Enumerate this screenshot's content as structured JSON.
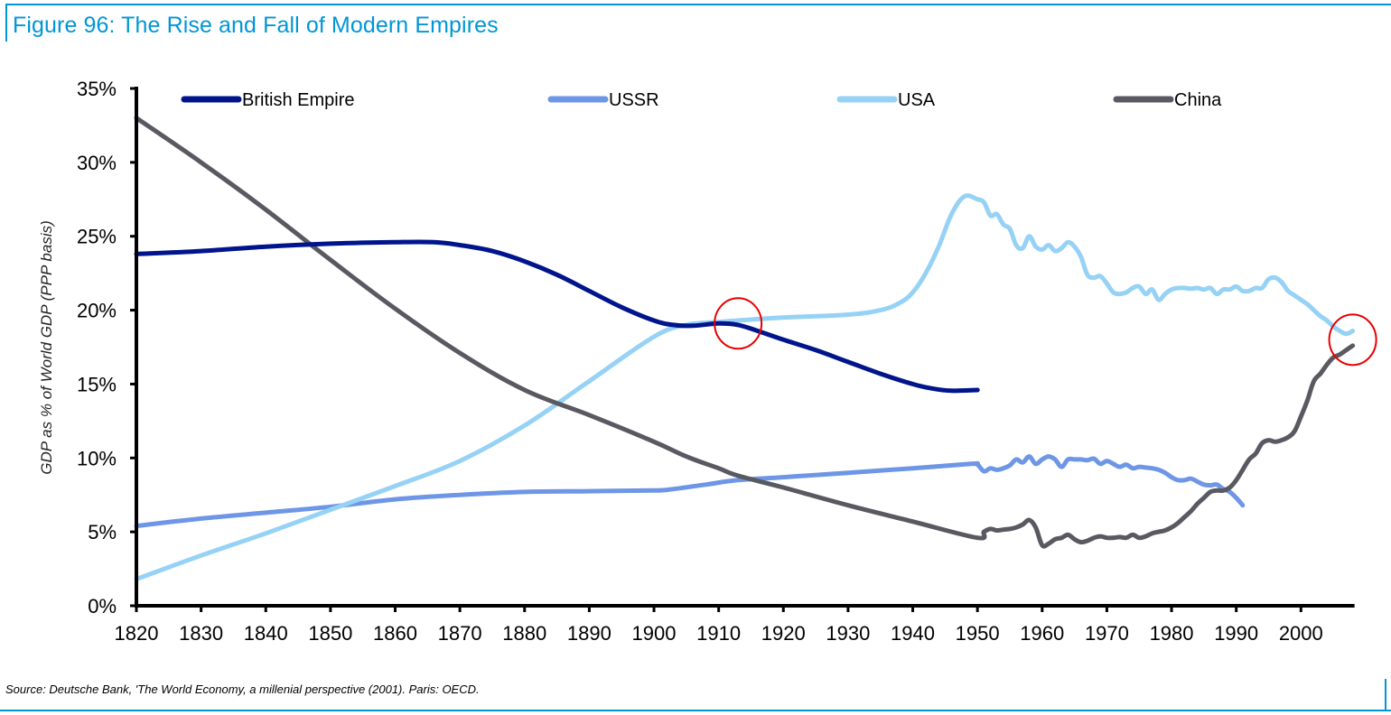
{
  "figure": {
    "title": "Figure 96: The Rise and Fall of Modern Empires",
    "source": "Source: Deutsche Bank, 'The World Economy, a millenial perspective (2001). Paris: OECD.",
    "accent_color": "#0096d6"
  },
  "chart_data": {
    "type": "line",
    "title": "Figure 96: The Rise and Fall of Modern Empires",
    "xlabel": "",
    "ylabel": "GDP as % of World GDP (PPP basis)",
    "xlim": [
      1820,
      2008
    ],
    "ylim": [
      0,
      35
    ],
    "x_ticks": [
      1820,
      1830,
      1840,
      1850,
      1860,
      1870,
      1880,
      1890,
      1900,
      1910,
      1920,
      1930,
      1940,
      1950,
      1960,
      1970,
      1980,
      1990,
      2000
    ],
    "x_tick_labels": [
      "1820",
      "1830",
      "1840",
      "1850",
      "1860",
      "1870",
      "1880",
      "1890",
      "1900",
      "1910",
      "1920",
      "1930",
      "1940",
      "1950",
      "1960",
      "1970",
      "1980",
      "1990",
      "2000"
    ],
    "y_ticks": [
      0,
      5,
      10,
      15,
      20,
      25,
      30,
      35
    ],
    "y_tick_labels": [
      "0%",
      "5%",
      "10%",
      "15%",
      "20%",
      "25%",
      "30%",
      "35%"
    ],
    "grid": false,
    "legend_position": "top",
    "series": [
      {
        "name": "British Empire",
        "color": "#00148c",
        "x": [
          1820,
          1830,
          1840,
          1850,
          1860,
          1866,
          1870,
          1875,
          1880,
          1885,
          1890,
          1895,
          1900,
          1903,
          1906,
          1910,
          1913,
          1916,
          1920,
          1925,
          1930,
          1935,
          1940,
          1943,
          1946,
          1950
        ],
        "values": [
          23.8,
          24.0,
          24.3,
          24.5,
          24.6,
          24.6,
          24.4,
          24.0,
          23.3,
          22.4,
          21.3,
          20.2,
          19.3,
          19.0,
          18.95,
          19.1,
          19.0,
          18.6,
          18.0,
          17.3,
          16.5,
          15.7,
          15.0,
          14.7,
          14.55,
          14.6
        ]
      },
      {
        "name": "USSR",
        "color": "#6e96e6",
        "x": [
          1820,
          1830,
          1840,
          1850,
          1860,
          1870,
          1880,
          1890,
          1900,
          1903,
          1908,
          1913,
          1920,
          1930,
          1940,
          1949,
          1950,
          1951,
          1952,
          1953,
          1954,
          1955,
          1956,
          1957,
          1958,
          1959,
          1960,
          1961,
          1962,
          1963,
          1964,
          1965,
          1966,
          1967,
          1968,
          1969,
          1970,
          1971,
          1972,
          1973,
          1974,
          1975,
          1976,
          1977,
          1978,
          1979,
          1980,
          1981,
          1982,
          1983,
          1984,
          1985,
          1986,
          1987,
          1988,
          1989,
          1990,
          1991
        ],
        "values": [
          5.4,
          5.9,
          6.3,
          6.7,
          7.2,
          7.5,
          7.7,
          7.75,
          7.8,
          7.9,
          8.2,
          8.5,
          8.7,
          9.0,
          9.3,
          9.6,
          9.55,
          9.1,
          9.3,
          9.2,
          9.3,
          9.5,
          9.9,
          9.7,
          10.1,
          9.6,
          9.9,
          10.1,
          9.9,
          9.4,
          9.9,
          9.9,
          9.9,
          9.85,
          9.95,
          9.6,
          9.8,
          9.6,
          9.4,
          9.55,
          9.3,
          9.4,
          9.35,
          9.3,
          9.2,
          9.0,
          8.7,
          8.5,
          8.5,
          8.6,
          8.4,
          8.2,
          8.15,
          8.2,
          7.9,
          7.7,
          7.3,
          6.8
        ]
      },
      {
        "name": "USA",
        "color": "#96d2f5",
        "x": [
          1820,
          1830,
          1840,
          1850,
          1860,
          1870,
          1880,
          1890,
          1900,
          1905,
          1910,
          1913,
          1920,
          1930,
          1935,
          1938,
          1940,
          1942,
          1944,
          1946,
          1948,
          1950,
          1951,
          1952,
          1953,
          1954,
          1955,
          1956,
          1957,
          1958,
          1959,
          1960,
          1961,
          1962,
          1963,
          1964,
          1965,
          1966,
          1967,
          1968,
          1969,
          1970,
          1971,
          1972,
          1973,
          1974,
          1975,
          1976,
          1977,
          1978,
          1979,
          1980,
          1981,
          1982,
          1983,
          1984,
          1985,
          1986,
          1987,
          1988,
          1989,
          1990,
          1991,
          1992,
          1993,
          1994,
          1995,
          1996,
          1997,
          1998,
          1999,
          2000,
          2001,
          2002,
          2003,
          2004,
          2005,
          2006,
          2007,
          2008
        ],
        "values": [
          1.8,
          3.4,
          4.9,
          6.5,
          8.1,
          9.8,
          12.2,
          15.2,
          18.2,
          19.0,
          19.2,
          19.3,
          19.5,
          19.7,
          20.0,
          20.5,
          21.2,
          22.5,
          24.3,
          26.5,
          27.7,
          27.5,
          27.3,
          26.4,
          26.5,
          25.8,
          25.5,
          24.4,
          24.2,
          25.0,
          24.3,
          24.1,
          24.4,
          24.0,
          24.2,
          24.6,
          24.3,
          23.6,
          22.4,
          22.2,
          22.3,
          21.8,
          21.2,
          21.1,
          21.2,
          21.5,
          21.6,
          21.1,
          21.4,
          20.7,
          21.1,
          21.4,
          21.5,
          21.5,
          21.45,
          21.5,
          21.4,
          21.5,
          21.1,
          21.4,
          21.4,
          21.6,
          21.3,
          21.3,
          21.5,
          21.5,
          22.1,
          22.2,
          21.9,
          21.3,
          21.0,
          20.7,
          20.4,
          20.0,
          19.6,
          19.3,
          18.9,
          18.6,
          18.4,
          18.6
        ]
      },
      {
        "name": "China",
        "color": "#595961",
        "x": [
          1820,
          1830,
          1840,
          1850,
          1860,
          1870,
          1880,
          1890,
          1900,
          1905,
          1910,
          1913,
          1920,
          1930,
          1940,
          1950,
          1951,
          1952,
          1953,
          1954,
          1955,
          1956,
          1957,
          1958,
          1959,
          1960,
          1961,
          1962,
          1963,
          1964,
          1965,
          1966,
          1967,
          1968,
          1969,
          1970,
          1971,
          1972,
          1973,
          1974,
          1975,
          1976,
          1977,
          1978,
          1979,
          1980,
          1981,
          1982,
          1983,
          1984,
          1985,
          1986,
          1987,
          1988,
          1989,
          1990,
          1991,
          1992,
          1993,
          1994,
          1995,
          1996,
          1997,
          1998,
          1999,
          2000,
          2001,
          2002,
          2003,
          2004,
          2005,
          2006,
          2007,
          2008
        ],
        "values": [
          33.0,
          30.0,
          26.8,
          23.4,
          20.1,
          17.1,
          14.6,
          12.9,
          11.1,
          10.1,
          9.3,
          8.8,
          8.0,
          6.8,
          5.7,
          4.6,
          5.0,
          5.2,
          5.1,
          5.15,
          5.2,
          5.3,
          5.5,
          5.8,
          5.3,
          4.1,
          4.2,
          4.5,
          4.6,
          4.8,
          4.5,
          4.3,
          4.4,
          4.6,
          4.7,
          4.6,
          4.6,
          4.65,
          4.6,
          4.8,
          4.6,
          4.7,
          4.9,
          5.0,
          5.1,
          5.3,
          5.6,
          6.0,
          6.4,
          6.9,
          7.3,
          7.7,
          7.8,
          7.8,
          8.0,
          8.5,
          9.2,
          9.9,
          10.3,
          11.0,
          11.2,
          11.1,
          11.2,
          11.4,
          11.8,
          12.8,
          13.9,
          15.2,
          15.7,
          16.3,
          16.8,
          17.0,
          17.3,
          17.6
        ]
      }
    ],
    "annotations": [
      {
        "type": "circle",
        "color": "#e60000",
        "x": 1913,
        "y": 19.1,
        "note": "British Empire / USA crossover"
      },
      {
        "type": "circle",
        "color": "#e60000",
        "x": 2008,
        "y": 18.0,
        "note": "USA / China convergence"
      }
    ]
  }
}
